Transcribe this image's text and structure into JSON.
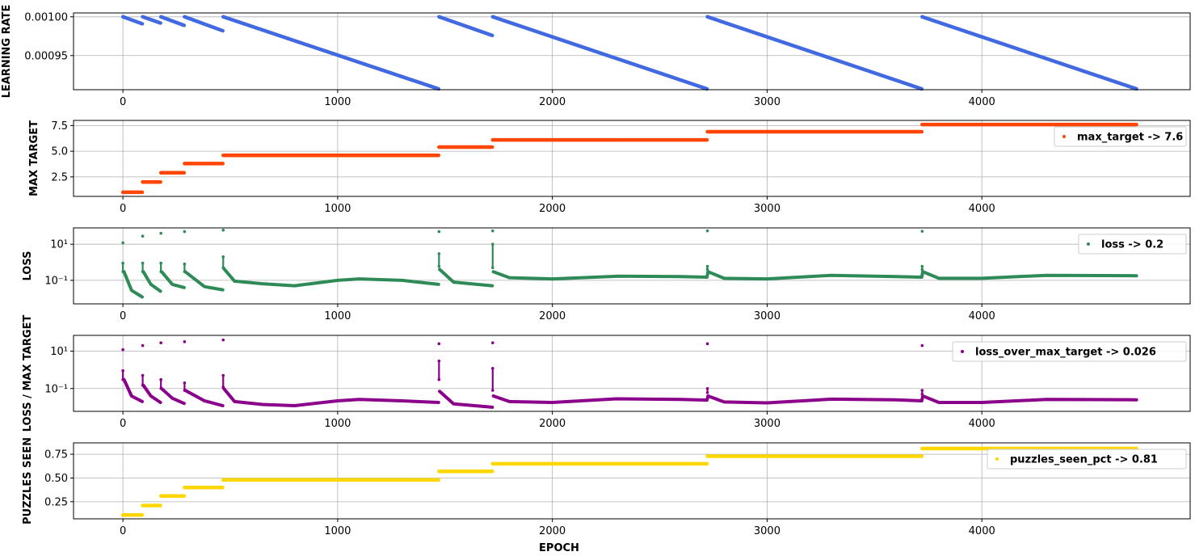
{
  "colors": {
    "learning_rate": "#4169e1",
    "max_target": "#ff4500",
    "loss": "#2e8b57",
    "loss_over_max_target": "#8b008b",
    "puzzles_seen": "#ffd700",
    "grid": "#b0b0b0"
  },
  "chart_data": [
    {
      "type": "scatter",
      "ylabel": "LEARNING RATE",
      "xlabel": "",
      "xlim": [
        -230,
        4970
      ],
      "ylim": [
        0.000906,
        0.001005
      ],
      "yscale": "linear",
      "xticks": [
        0,
        1000,
        2000,
        3000,
        4000
      ],
      "xtick_labels": [
        "0",
        "1000",
        "2000",
        "3000",
        "4000"
      ],
      "yticks": [
        0.00095,
        0.001
      ],
      "ytick_labels": [
        "0.00095",
        "0.00100"
      ],
      "grid": true,
      "legend": null,
      "segments": [
        {
          "x": [
            0,
            90
          ],
          "y": [
            0.001,
            0.000991
          ]
        },
        {
          "x": [
            92,
            175
          ],
          "y": [
            0.001,
            0.000992
          ]
        },
        {
          "x": [
            177,
            285
          ],
          "y": [
            0.001,
            0.000989
          ]
        },
        {
          "x": [
            287,
            465
          ],
          "y": [
            0.001,
            0.000982
          ]
        },
        {
          "x": [
            467,
            1470
          ],
          "y": [
            0.001,
            0.000907
          ]
        },
        {
          "x": [
            1472,
            1720
          ],
          "y": [
            0.001,
            0.000976
          ]
        },
        {
          "x": [
            1722,
            2720
          ],
          "y": [
            0.001,
            0.000907
          ]
        },
        {
          "x": [
            2722,
            3720
          ],
          "y": [
            0.001,
            0.000907
          ]
        },
        {
          "x": [
            3722,
            4720
          ],
          "y": [
            0.001,
            0.000907
          ]
        }
      ]
    },
    {
      "type": "scatter",
      "ylabel": "MAX TARGET",
      "xlabel": "",
      "xlim": [
        -230,
        4970
      ],
      "ylim": [
        0.6,
        8.0
      ],
      "yscale": "linear",
      "xticks": [
        0,
        1000,
        2000,
        3000,
        4000
      ],
      "xtick_labels": [
        "0",
        "1000",
        "2000",
        "3000",
        "4000"
      ],
      "yticks": [
        2.5,
        5.0,
        7.5
      ],
      "ytick_labels": [
        "2.5",
        "5.0",
        "7.5"
      ],
      "grid": true,
      "legend": {
        "label": "max_target -> 7.6",
        "placement": "upper-right"
      },
      "segments": [
        {
          "x": [
            0,
            90
          ],
          "y": [
            1.0,
            1.0
          ]
        },
        {
          "x": [
            92,
            175
          ],
          "y": [
            2.0,
            2.0
          ]
        },
        {
          "x": [
            177,
            285
          ],
          "y": [
            2.9,
            2.9
          ]
        },
        {
          "x": [
            287,
            465
          ],
          "y": [
            3.8,
            3.8
          ]
        },
        {
          "x": [
            467,
            1470
          ],
          "y": [
            4.6,
            4.6
          ]
        },
        {
          "x": [
            1472,
            1720
          ],
          "y": [
            5.4,
            5.4
          ]
        },
        {
          "x": [
            1722,
            2720
          ],
          "y": [
            6.1,
            6.1
          ]
        },
        {
          "x": [
            2722,
            3720
          ],
          "y": [
            6.9,
            6.9
          ]
        },
        {
          "x": [
            3722,
            4720
          ],
          "y": [
            7.6,
            7.6
          ]
        }
      ]
    },
    {
      "type": "scatter",
      "ylabel": "LOSS",
      "xlabel": "",
      "xlim": [
        -230,
        4970
      ],
      "ylim": [
        0.005,
        80
      ],
      "yscale": "log",
      "xticks": [
        0,
        1000,
        2000,
        3000,
        4000
      ],
      "xtick_labels": [
        "0",
        "1000",
        "2000",
        "3000",
        "4000"
      ],
      "yticks": [
        0.1,
        10
      ],
      "ytick_labels": [
        "10⁻¹",
        "10¹"
      ],
      "grid": true,
      "legend": {
        "label": "loss -> 0.2",
        "placement": "upper-right"
      },
      "spikes": [
        {
          "x": 0,
          "y": [
            12,
            0.9,
            0.3
          ]
        },
        {
          "x": 92,
          "y": [
            28,
            0.9,
            0.3
          ]
        },
        {
          "x": 177,
          "y": [
            40,
            0.9,
            0.3
          ]
        },
        {
          "x": 287,
          "y": [
            50,
            0.8,
            0.3
          ]
        },
        {
          "x": 467,
          "y": [
            60,
            2.0,
            0.5
          ]
        },
        {
          "x": 1472,
          "y": [
            50,
            3.0,
            0.6
          ]
        },
        {
          "x": 1722,
          "y": [
            55,
            10,
            0.5
          ]
        },
        {
          "x": 2722,
          "y": [
            55,
            0.6,
            0.4
          ]
        },
        {
          "x": 3722,
          "y": [
            52,
            0.6,
            0.4
          ]
        }
      ],
      "curve": {
        "x": [
          5,
          40,
          90,
          95,
          130,
          175,
          180,
          230,
          285,
          290,
          380,
          465,
          470,
          520,
          650,
          800,
          1000,
          1100,
          1300,
          1470,
          1475,
          1540,
          1720,
          1725,
          1800,
          2000,
          2300,
          2600,
          2720,
          2725,
          2800,
          3000,
          3300,
          3600,
          3720,
          3725,
          3800,
          4000,
          4300,
          4720
        ],
        "y": [
          0.3,
          0.028,
          0.012,
          0.3,
          0.06,
          0.025,
          0.3,
          0.06,
          0.04,
          0.3,
          0.045,
          0.03,
          0.45,
          0.09,
          0.065,
          0.05,
          0.1,
          0.12,
          0.1,
          0.06,
          0.4,
          0.08,
          0.05,
          0.3,
          0.14,
          0.12,
          0.17,
          0.16,
          0.15,
          0.3,
          0.13,
          0.12,
          0.19,
          0.16,
          0.15,
          0.3,
          0.13,
          0.13,
          0.19,
          0.18
        ]
      }
    },
    {
      "type": "scatter",
      "ylabel": "LOSS / MAX TARGET",
      "xlabel": "",
      "xlim": [
        -230,
        4970
      ],
      "ylim": [
        0.006,
        70
      ],
      "yscale": "log",
      "xticks": [
        0,
        1000,
        2000,
        3000,
        4000
      ],
      "xtick_labels": [
        "0",
        "1000",
        "2000",
        "3000",
        "4000"
      ],
      "yticks": [
        0.1,
        10
      ],
      "ytick_labels": [
        "10⁻¹",
        "10¹"
      ],
      "grid": true,
      "legend": {
        "label": "loss_over_max_target -> 0.026",
        "placement": "upper-right"
      },
      "spikes": [
        {
          "x": 0,
          "y": [
            12,
            0.9,
            0.3
          ]
        },
        {
          "x": 92,
          "y": [
            20,
            0.5,
            0.15
          ]
        },
        {
          "x": 177,
          "y": [
            28,
            0.3,
            0.1
          ]
        },
        {
          "x": 287,
          "y": [
            32,
            0.2,
            0.08
          ]
        },
        {
          "x": 467,
          "y": [
            40,
            0.5,
            0.12
          ]
        },
        {
          "x": 1472,
          "y": [
            25,
            3.0,
            0.3
          ]
        },
        {
          "x": 1722,
          "y": [
            28,
            1.2,
            0.08
          ]
        },
        {
          "x": 2722,
          "y": [
            25,
            0.1,
            0.06
          ]
        },
        {
          "x": 3722,
          "y": [
            20,
            0.08,
            0.05
          ]
        }
      ],
      "curve": {
        "x": [
          5,
          40,
          90,
          95,
          130,
          175,
          180,
          230,
          285,
          290,
          380,
          465,
          470,
          520,
          650,
          800,
          1000,
          1100,
          1300,
          1470,
          1475,
          1540,
          1720,
          1725,
          1800,
          2000,
          2300,
          2600,
          2720,
          2725,
          2800,
          3000,
          3300,
          3600,
          3720,
          3725,
          3800,
          4000,
          4300,
          4720
        ],
        "y": [
          0.3,
          0.04,
          0.02,
          0.15,
          0.04,
          0.018,
          0.1,
          0.03,
          0.016,
          0.08,
          0.022,
          0.012,
          0.1,
          0.02,
          0.014,
          0.012,
          0.022,
          0.026,
          0.022,
          0.018,
          0.07,
          0.015,
          0.01,
          0.04,
          0.02,
          0.018,
          0.028,
          0.026,
          0.024,
          0.04,
          0.019,
          0.017,
          0.027,
          0.025,
          0.022,
          0.04,
          0.018,
          0.018,
          0.026,
          0.025
        ]
      }
    },
    {
      "type": "scatter",
      "ylabel": "PUZZLES SEEN",
      "xlabel": "EPOCH",
      "xlim": [
        -230,
        4970
      ],
      "ylim": [
        0.07,
        0.87
      ],
      "yscale": "linear",
      "xticks": [
        0,
        1000,
        2000,
        3000,
        4000
      ],
      "xtick_labels": [
        "0",
        "1000",
        "2000",
        "3000",
        "4000"
      ],
      "yticks": [
        0.25,
        0.5,
        0.75
      ],
      "ytick_labels": [
        "0.25",
        "0.50",
        "0.75"
      ],
      "grid": true,
      "legend": {
        "label": "puzzles_seen_pct -> 0.81",
        "placement": "upper-right"
      },
      "segments": [
        {
          "x": [
            0,
            90
          ],
          "y": [
            0.11,
            0.11
          ]
        },
        {
          "x": [
            92,
            175
          ],
          "y": [
            0.21,
            0.21
          ]
        },
        {
          "x": [
            177,
            285
          ],
          "y": [
            0.31,
            0.31
          ]
        },
        {
          "x": [
            287,
            465
          ],
          "y": [
            0.4,
            0.4
          ]
        },
        {
          "x": [
            467,
            1470
          ],
          "y": [
            0.48,
            0.48
          ]
        },
        {
          "x": [
            1472,
            1720
          ],
          "y": [
            0.57,
            0.57
          ]
        },
        {
          "x": [
            1722,
            2720
          ],
          "y": [
            0.65,
            0.65
          ]
        },
        {
          "x": [
            2722,
            3720
          ],
          "y": [
            0.73,
            0.73
          ]
        },
        {
          "x": [
            3722,
            4720
          ],
          "y": [
            0.81,
            0.81
          ]
        }
      ]
    }
  ]
}
